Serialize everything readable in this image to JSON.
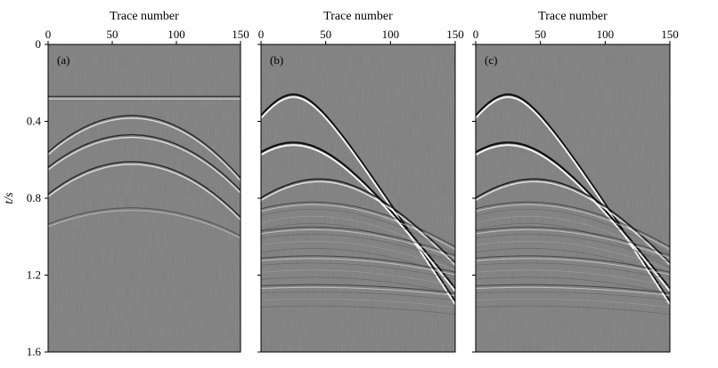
{
  "chart_data": [
    {
      "type": "heatmap",
      "panel_label": "(a)",
      "xlabel": "Trace number",
      "ylabel": "t/s",
      "xlim": [
        0,
        150
      ],
      "ylim": [
        0,
        1.6
      ],
      "y_reversed": true,
      "x_ticks": [
        0,
        50,
        100,
        150
      ],
      "y_ticks": [
        0,
        0.4,
        0.8,
        1.2,
        1.6
      ],
      "y_tick_labels": [
        "0",
        "0.4",
        "0.8",
        "1.2",
        "1.6"
      ],
      "colormap": "gray",
      "background": "#7d7d7d",
      "events": [
        {
          "apex_trace": 65,
          "apex_time": 0.27,
          "curvature": 0.0,
          "kind": "flat-spiky"
        },
        {
          "apex_trace": 65,
          "apex_time": 0.37,
          "curvature": 4.5e-05,
          "kind": "hyperbola"
        },
        {
          "apex_trace": 65,
          "apex_time": 0.47,
          "curvature": 4e-05,
          "kind": "hyperbola"
        },
        {
          "apex_trace": 65,
          "apex_time": 0.61,
          "curvature": 4e-05,
          "kind": "hyperbola"
        },
        {
          "apex_trace": 65,
          "apex_time": 0.85,
          "curvature": 2e-05,
          "kind": "weak"
        }
      ]
    },
    {
      "type": "heatmap",
      "panel_label": "(b)",
      "xlabel": "Trace number",
      "xlim": [
        0,
        150
      ],
      "ylim": [
        0,
        1.6
      ],
      "y_reversed": true,
      "x_ticks": [
        0,
        50,
        100,
        150
      ],
      "colormap": "gray",
      "background": "#7d7d7d",
      "events": [
        {
          "apex_trace": 25,
          "apex_time": 0.26,
          "slope": 0.0105,
          "kind": "strong"
        },
        {
          "apex_trace": 25,
          "apex_time": 0.51,
          "slope": 0.0093,
          "kind": "strong"
        },
        {
          "apex_trace": 45,
          "apex_time": 0.7,
          "slope": 0.0085,
          "kind": "medium"
        },
        {
          "apex_trace": 40,
          "apex_time": 0.82,
          "slope": 0.006,
          "kind": "layered"
        },
        {
          "apex_trace": 40,
          "apex_time": 0.95,
          "slope": 0.005,
          "kind": "layered"
        },
        {
          "apex_trace": 40,
          "apex_time": 1.1,
          "slope": 0.004,
          "kind": "layered"
        },
        {
          "apex_trace": 40,
          "apex_time": 1.25,
          "slope": 0.003,
          "kind": "layered"
        }
      ]
    },
    {
      "type": "heatmap",
      "panel_label": "(c)",
      "xlabel": "Trace number",
      "xlim": [
        0,
        150
      ],
      "ylim": [
        0,
        1.6
      ],
      "y_reversed": true,
      "x_ticks": [
        0,
        50,
        100,
        150
      ],
      "colormap": "gray",
      "background": "#7d7d7d",
      "events": [
        {
          "apex_trace": 25,
          "apex_time": 0.26,
          "slope": 0.0105,
          "kind": "strong"
        },
        {
          "apex_trace": 25,
          "apex_time": 0.51,
          "slope": 0.0093,
          "kind": "strong"
        },
        {
          "apex_trace": 45,
          "apex_time": 0.7,
          "slope": 0.0085,
          "kind": "medium"
        },
        {
          "apex_trace": 40,
          "apex_time": 0.82,
          "slope": 0.006,
          "kind": "layered"
        },
        {
          "apex_trace": 40,
          "apex_time": 0.95,
          "slope": 0.005,
          "kind": "layered"
        },
        {
          "apex_trace": 40,
          "apex_time": 1.1,
          "slope": 0.004,
          "kind": "layered"
        },
        {
          "apex_trace": 40,
          "apex_time": 1.25,
          "slope": 0.003,
          "kind": "layered"
        }
      ]
    }
  ]
}
